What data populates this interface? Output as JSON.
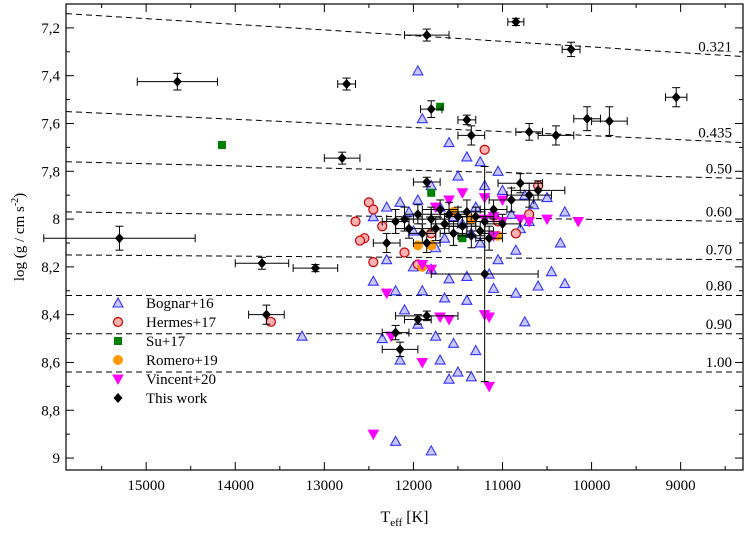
{
  "chart_data": {
    "type": "scatter",
    "xlabel_main": "T",
    "xlabel_sub": "eff",
    "xlabel_unit": " [K]",
    "ylabel_main": "log (g / cm s",
    "ylabel_sup": "-2",
    "ylabel_close": ")",
    "xlim": [
      15900,
      8300
    ],
    "ylim": [
      7.1,
      9.05
    ],
    "xticks": [
      15000,
      14000,
      13000,
      12000,
      11000,
      10000,
      9000
    ],
    "yticks": [
      7.2,
      7.4,
      7.6,
      7.8,
      8.0,
      8.2,
      8.4,
      8.6,
      8.8,
      9.0
    ],
    "ytick_labels": [
      "7,2",
      "7,4",
      "7,6",
      "7,8",
      "8",
      "8,2",
      "8,4",
      "8,6",
      "8,8",
      "9"
    ],
    "xticks_labels": [
      "15000",
      "14000",
      "13000",
      "12000",
      "11000",
      "10000",
      "9000"
    ],
    "mass_tracks": [
      {
        "label": "0.321",
        "y_start": 7.14,
        "y_end": 7.32
      },
      {
        "label": "0.435",
        "y_start": 7.55,
        "y_end": 7.68
      },
      {
        "label": "0.50",
        "y_start": 7.76,
        "y_end": 7.83
      },
      {
        "label": "0.60",
        "y_start": 7.97,
        "y_end": 8.01
      },
      {
        "label": "0.70",
        "y_start": 8.15,
        "y_end": 8.17
      },
      {
        "label": "0.80",
        "y_start": 8.32,
        "y_end": 8.32
      },
      {
        "label": "0.90",
        "y_start": 8.48,
        "y_end": 8.48
      },
      {
        "label": "1.00",
        "y_start": 8.64,
        "y_end": 8.64
      }
    ],
    "legend_position": "bottom-left",
    "legend": [
      "Bognar+16",
      "Hermes+17",
      "Su+17",
      "Romero+19",
      "Vincent+20",
      "This work"
    ],
    "series": [
      {
        "name": "Bognar+16",
        "marker": "triangle-up",
        "color": "#3333ff",
        "points": [
          [
            11950,
            7.38
          ],
          [
            11900,
            7.58
          ],
          [
            11600,
            7.68
          ],
          [
            11400,
            7.74
          ],
          [
            11250,
            7.76
          ],
          [
            11050,
            7.8
          ],
          [
            11500,
            7.82
          ],
          [
            11800,
            7.86
          ],
          [
            11200,
            7.86
          ],
          [
            11000,
            7.88
          ],
          [
            10750,
            7.9
          ],
          [
            10500,
            7.91
          ],
          [
            10650,
            7.94
          ],
          [
            10300,
            7.97
          ],
          [
            11950,
            7.92
          ],
          [
            12150,
            7.93
          ],
          [
            12300,
            7.95
          ],
          [
            12450,
            7.99
          ],
          [
            12050,
            7.97
          ],
          [
            11700,
            7.95
          ],
          [
            11300,
            7.95
          ],
          [
            11100,
            7.97
          ],
          [
            10900,
            7.98
          ],
          [
            10700,
            8.01
          ],
          [
            10800,
            8.04
          ],
          [
            10350,
            8.1
          ],
          [
            10850,
            8.13
          ],
          [
            10450,
            8.22
          ],
          [
            11050,
            8.17
          ],
          [
            11150,
            8.23
          ],
          [
            11400,
            8.24
          ],
          [
            11600,
            8.25
          ],
          [
            11800,
            8.21
          ],
          [
            12000,
            8.2
          ],
          [
            12300,
            8.17
          ],
          [
            12450,
            8.26
          ],
          [
            12200,
            8.3
          ],
          [
            11900,
            8.3
          ],
          [
            11650,
            8.33
          ],
          [
            11400,
            8.34
          ],
          [
            11100,
            8.29
          ],
          [
            10850,
            8.31
          ],
          [
            10600,
            8.28
          ],
          [
            10300,
            8.27
          ],
          [
            12100,
            8.38
          ],
          [
            11950,
            8.44
          ],
          [
            11750,
            8.49
          ],
          [
            11550,
            8.52
          ],
          [
            11300,
            8.55
          ],
          [
            11700,
            8.59
          ],
          [
            11600,
            8.67
          ],
          [
            11500,
            8.64
          ],
          [
            11350,
            8.66
          ],
          [
            12350,
            8.5
          ],
          [
            12150,
            8.59
          ],
          [
            13250,
            8.49
          ],
          [
            12200,
            8.93
          ],
          [
            11800,
            8.97
          ],
          [
            10750,
            8.43
          ],
          [
            11450,
            8.02
          ],
          [
            11550,
            7.99
          ],
          [
            11350,
            8.06
          ],
          [
            11650,
            8.08
          ],
          [
            11250,
            8.1
          ],
          [
            11750,
            8.12
          ],
          [
            12000,
            8.05
          ]
        ]
      },
      {
        "name": "Hermes+17",
        "marker": "circle-open",
        "color": "#cc0000",
        "points": [
          [
            12500,
            7.93
          ],
          [
            12450,
            7.96
          ],
          [
            12650,
            8.01
          ],
          [
            12550,
            8.08
          ],
          [
            12600,
            8.09
          ],
          [
            11200,
            7.71
          ],
          [
            10600,
            7.86
          ],
          [
            12450,
            8.18
          ],
          [
            12100,
            8.14
          ],
          [
            11950,
            8.19
          ],
          [
            11800,
            8.06
          ],
          [
            13600,
            8.43
          ],
          [
            10850,
            8.06
          ],
          [
            10700,
            7.98
          ],
          [
            11050,
            8.01
          ],
          [
            12350,
            8.03
          ]
        ]
      },
      {
        "name": "Su+17",
        "marker": "square",
        "color": "#008000",
        "points": [
          [
            14150,
            7.69
          ],
          [
            11700,
            7.53
          ],
          [
            11800,
            7.89
          ],
          [
            11450,
            8.08
          ]
        ]
      },
      {
        "name": "Romero+19",
        "marker": "circle",
        "color": "#ff9900",
        "points": [
          [
            11950,
            8.11
          ],
          [
            11900,
            8.2
          ],
          [
            11800,
            8.11
          ],
          [
            11050,
            8.07
          ],
          [
            11350,
            8.0
          ],
          [
            11550,
            7.97
          ]
        ]
      },
      {
        "name": "Vincent+20",
        "marker": "triangle-down",
        "color": "#ff00ff",
        "points": [
          [
            11200,
            7.91
          ],
          [
            11450,
            7.89
          ],
          [
            11000,
            7.92
          ],
          [
            11100,
            7.99
          ],
          [
            11000,
            8.01
          ],
          [
            10800,
            8.0
          ],
          [
            10700,
            8.01
          ],
          [
            10500,
            8.0
          ],
          [
            10150,
            8.01
          ],
          [
            11200,
            8.0
          ],
          [
            11100,
            8.07
          ],
          [
            11800,
            8.21
          ],
          [
            11900,
            8.19
          ],
          [
            12300,
            8.31
          ],
          [
            11200,
            8.4
          ],
          [
            11150,
            8.41
          ],
          [
            11600,
            8.42
          ],
          [
            11700,
            8.41
          ],
          [
            12250,
            8.49
          ],
          [
            11900,
            8.6
          ],
          [
            11150,
            8.7
          ],
          [
            12450,
            8.9
          ],
          [
            11600,
            7.92
          ],
          [
            11750,
            7.95
          ]
        ]
      },
      {
        "name": "This work",
        "marker": "diamond",
        "color": "#000000",
        "points": [
          [
            10850,
            7.175,
            90,
            0.015
          ],
          [
            10230,
            7.29,
            100,
            0.03
          ],
          [
            11850,
            7.23,
            250,
            0.025
          ],
          [
            14650,
            7.425,
            450,
            0.035
          ],
          [
            12750,
            7.435,
            100,
            0.025
          ],
          [
            11800,
            7.54,
            120,
            0.035
          ],
          [
            11400,
            7.585,
            100,
            0.02
          ],
          [
            11350,
            7.65,
            150,
            0.04
          ],
          [
            10700,
            7.635,
            150,
            0.035
          ],
          [
            10400,
            7.65,
            200,
            0.04
          ],
          [
            10050,
            7.58,
            150,
            0.05
          ],
          [
            9800,
            7.59,
            200,
            0.06
          ],
          [
            9050,
            7.49,
            120,
            0.04
          ],
          [
            12800,
            7.745,
            200,
            0.025
          ],
          [
            11850,
            7.845,
            150,
            0.02
          ],
          [
            15300,
            8.08,
            850,
            0.05
          ],
          [
            13700,
            8.185,
            300,
            0.025
          ],
          [
            13100,
            8.205,
            250,
            0.015
          ],
          [
            13650,
            8.4,
            200,
            0.04
          ],
          [
            12200,
            8.475,
            150,
            0.03
          ],
          [
            12150,
            8.545,
            200,
            0.03
          ],
          [
            11850,
            8.405,
            350,
            0.02
          ],
          [
            11950,
            8.42,
            150,
            0.02
          ],
          [
            11200,
            8.23,
            600,
            0.45
          ],
          [
            12100,
            8.0,
            200,
            0.05
          ],
          [
            11950,
            7.98,
            150,
            0.04
          ],
          [
            11800,
            8.0,
            200,
            0.05
          ],
          [
            11700,
            7.96,
            200,
            0.04
          ],
          [
            11600,
            7.98,
            200,
            0.05
          ],
          [
            11500,
            7.99,
            150,
            0.04
          ],
          [
            11400,
            7.97,
            200,
            0.05
          ],
          [
            11300,
            7.99,
            200,
            0.04
          ],
          [
            11200,
            8.01,
            200,
            0.05
          ],
          [
            11100,
            7.96,
            150,
            0.04
          ],
          [
            11000,
            8.02,
            200,
            0.04
          ],
          [
            10900,
            7.92,
            250,
            0.05
          ],
          [
            10800,
            7.85,
            250,
            0.04
          ],
          [
            10700,
            7.9,
            250,
            0.05
          ],
          [
            10600,
            7.88,
            300,
            0.04
          ],
          [
            12050,
            8.04,
            150,
            0.04
          ],
          [
            11900,
            8.06,
            150,
            0.04
          ],
          [
            11750,
            8.04,
            150,
            0.05
          ],
          [
            11650,
            8.02,
            150,
            0.04
          ],
          [
            11550,
            8.06,
            150,
            0.05
          ],
          [
            11450,
            8.03,
            150,
            0.04
          ],
          [
            11350,
            8.07,
            150,
            0.05
          ],
          [
            11250,
            8.05,
            150,
            0.04
          ],
          [
            11150,
            8.08,
            150,
            0.05
          ],
          [
            12200,
            8.01,
            150,
            0.05
          ],
          [
            12300,
            8.1,
            150,
            0.04
          ],
          [
            11850,
            8.1,
            150,
            0.04
          ]
        ]
      }
    ]
  }
}
